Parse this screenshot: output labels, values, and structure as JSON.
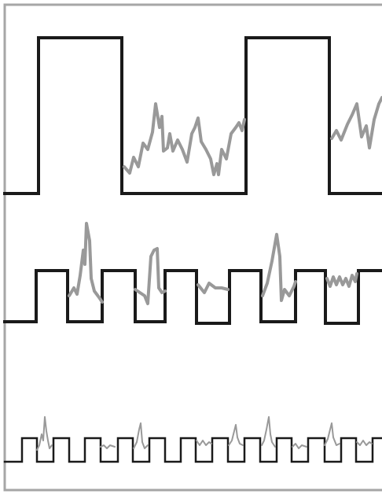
{
  "figure": {
    "frame_color": "#a6a6a6",
    "square_wave_color": "#1a1a1a",
    "trace_color": "#999999",
    "panels": [
      {
        "id": "top",
        "cycles": 2,
        "description_name": "slow-square-wave"
      },
      {
        "id": "middle",
        "cycles": 5,
        "description_name": "medium-square-wave"
      },
      {
        "id": "bottom",
        "cycles": 11,
        "description_name": "fast-square-wave"
      }
    ]
  }
}
